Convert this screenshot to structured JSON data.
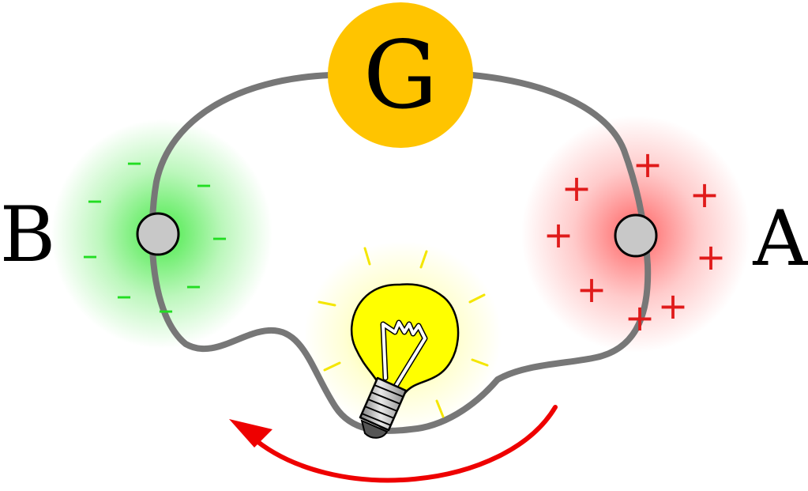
{
  "generator": {
    "label": "G",
    "fill_color": "#ffc400",
    "text_color": "#000000"
  },
  "terminals": {
    "left": {
      "label": "B",
      "sign": "-",
      "sign_count": 8,
      "glow_color": "#3ee83e",
      "sign_color": "#22dd22"
    },
    "right": {
      "label": "A",
      "sign": "+",
      "sign_count": 8,
      "glow_color": "#ff6b6b",
      "sign_color": "#e01a1a"
    }
  },
  "colors": {
    "wire": "#777777",
    "terminal_fill": "#c8c8c8",
    "bulb_glass": "#ffff00",
    "bulb_glow": "#ffff66",
    "bulb_rays": "#f4e600",
    "arrow": "#ee0000"
  },
  "icons": {
    "bulb": "light-bulb-icon",
    "arrow": "curved-arrow-icon"
  }
}
